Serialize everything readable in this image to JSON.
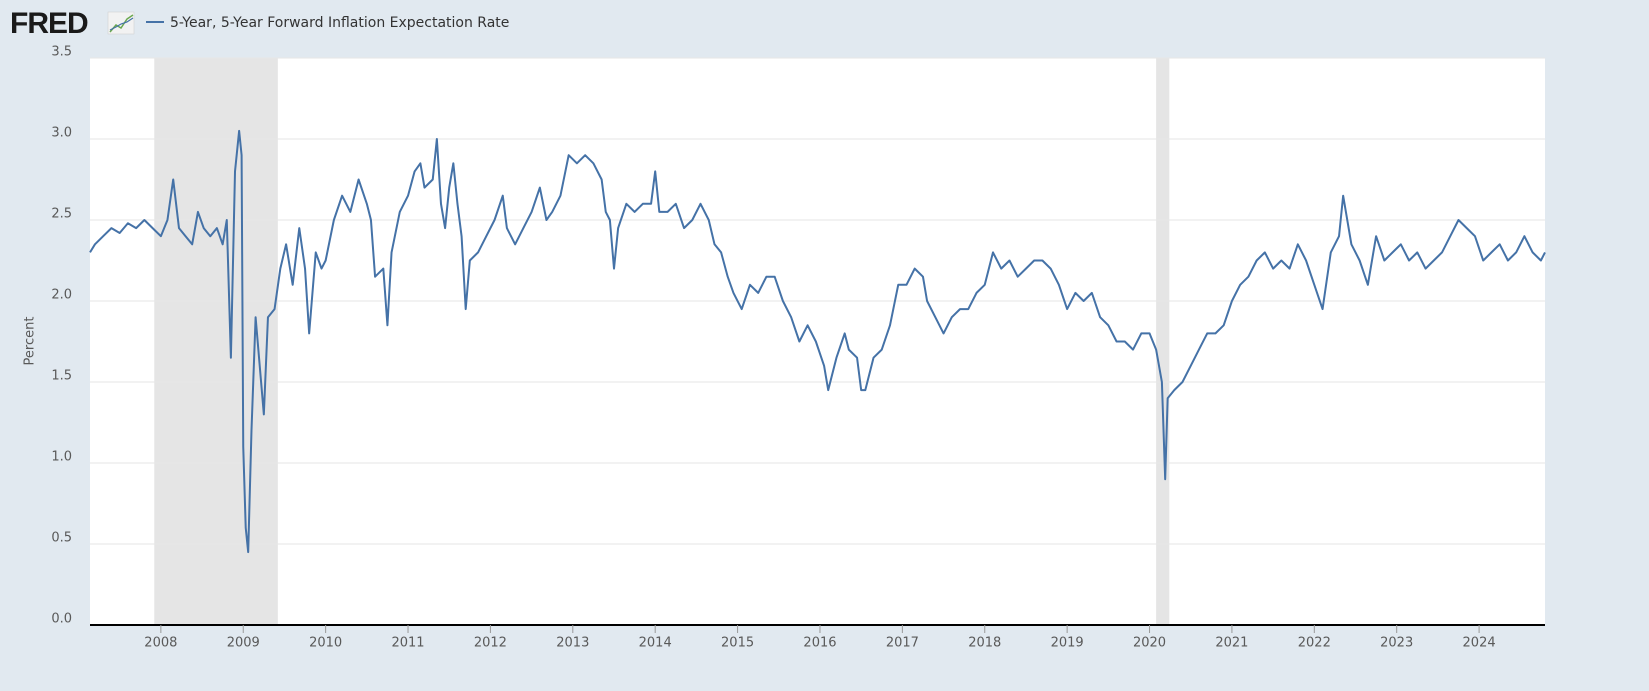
{
  "chart_data": {
    "type": "line",
    "logo": "FRED",
    "y_label": "Percent",
    "legend": "top-left",
    "grid": true,
    "xlim": [
      2007.14,
      2024.8
    ],
    "xticks": [
      2008,
      2009,
      2010,
      2011,
      2012,
      2013,
      2014,
      2015,
      2016,
      2017,
      2018,
      2019,
      2020,
      2021,
      2022,
      2023,
      2024
    ],
    "ylim": [
      0,
      3.5
    ],
    "yticks": [
      {
        "value": 0,
        "label": "0.0"
      },
      0.5,
      {
        "value": 1,
        "label": "1.0"
      },
      1.5,
      {
        "value": 2,
        "label": "2.0"
      },
      2.5,
      {
        "value": 3,
        "label": "3.0"
      },
      3.5
    ],
    "recession_color": "#e5e5e5",
    "recessions": [
      [
        2007.92,
        2009.42
      ],
      [
        2020.08,
        2020.24
      ]
    ],
    "x": [
      2007.14,
      2007.2,
      2007.3,
      2007.4,
      2007.5,
      2007.6,
      2007.7,
      2007.8,
      2007.9,
      2008.0,
      2008.08,
      2008.15,
      2008.22,
      2008.3,
      2008.38,
      2008.45,
      2008.52,
      2008.6,
      2008.68,
      2008.75,
      2008.8,
      2008.85,
      2008.9,
      2008.95,
      2008.98,
      2009.0,
      2009.03,
      2009.06,
      2009.1,
      2009.15,
      2009.2,
      2009.25,
      2009.3,
      2009.38,
      2009.45,
      2009.52,
      2009.6,
      2009.68,
      2009.75,
      2009.8,
      2009.88,
      2009.95,
      2010.0,
      2010.1,
      2010.2,
      2010.3,
      2010.4,
      2010.5,
      2010.55,
      2010.6,
      2010.7,
      2010.75,
      2010.8,
      2010.9,
      2011.0,
      2011.08,
      2011.15,
      2011.2,
      2011.3,
      2011.35,
      2011.4,
      2011.45,
      2011.5,
      2011.55,
      2011.6,
      2011.65,
      2011.7,
      2011.75,
      2011.85,
      2011.95,
      2012.05,
      2012.15,
      2012.2,
      2012.3,
      2012.4,
      2012.5,
      2012.6,
      2012.68,
      2012.75,
      2012.85,
      2012.95,
      2013.05,
      2013.15,
      2013.25,
      2013.35,
      2013.4,
      2013.45,
      2013.5,
      2013.55,
      2013.65,
      2013.75,
      2013.85,
      2013.95,
      2014.0,
      2014.05,
      2014.15,
      2014.25,
      2014.35,
      2014.45,
      2014.55,
      2014.65,
      2014.72,
      2014.8,
      2014.88,
      2014.95,
      2015.05,
      2015.15,
      2015.25,
      2015.35,
      2015.45,
      2015.55,
      2015.65,
      2015.75,
      2015.85,
      2015.95,
      2016.05,
      2016.1,
      2016.2,
      2016.3,
      2016.35,
      2016.45,
      2016.5,
      2016.55,
      2016.65,
      2016.75,
      2016.85,
      2016.95,
      2017.05,
      2017.15,
      2017.25,
      2017.3,
      2017.4,
      2017.5,
      2017.6,
      2017.7,
      2017.8,
      2017.9,
      2018.0,
      2018.1,
      2018.2,
      2018.3,
      2018.4,
      2018.5,
      2018.6,
      2018.7,
      2018.8,
      2018.9,
      2019.0,
      2019.1,
      2019.2,
      2019.3,
      2019.4,
      2019.5,
      2019.6,
      2019.7,
      2019.8,
      2019.9,
      2020.0,
      2020.08,
      2020.15,
      2020.19,
      2020.22,
      2020.3,
      2020.4,
      2020.5,
      2020.6,
      2020.7,
      2020.8,
      2020.9,
      2021.0,
      2021.1,
      2021.2,
      2021.3,
      2021.4,
      2021.5,
      2021.6,
      2021.7,
      2021.8,
      2021.9,
      2022.0,
      2022.1,
      2022.2,
      2022.3,
      2022.35,
      2022.45,
      2022.55,
      2022.65,
      2022.75,
      2022.85,
      2022.95,
      2023.05,
      2023.15,
      2023.25,
      2023.35,
      2023.45,
      2023.55,
      2023.65,
      2023.75,
      2023.85,
      2023.95,
      2024.05,
      2024.15,
      2024.25,
      2024.35,
      2024.45,
      2024.55,
      2024.65,
      2024.75,
      2024.8
    ],
    "series": [
      {
        "name": "5-Year, 5-Year Forward Inflation Expectation Rate",
        "color": "#4572a7",
        "values": [
          2.3,
          2.35,
          2.4,
          2.45,
          2.42,
          2.48,
          2.45,
          2.5,
          2.45,
          2.4,
          2.5,
          2.75,
          2.45,
          2.4,
          2.35,
          2.55,
          2.45,
          2.4,
          2.45,
          2.35,
          2.5,
          1.65,
          2.8,
          3.05,
          2.9,
          1.1,
          0.6,
          0.45,
          1.2,
          1.9,
          1.6,
          1.3,
          1.9,
          1.95,
          2.2,
          2.35,
          2.1,
          2.45,
          2.2,
          1.8,
          2.3,
          2.2,
          2.25,
          2.5,
          2.65,
          2.55,
          2.75,
          2.6,
          2.5,
          2.15,
          2.2,
          1.85,
          2.3,
          2.55,
          2.65,
          2.8,
          2.85,
          2.7,
          2.75,
          3.0,
          2.6,
          2.45,
          2.7,
          2.85,
          2.6,
          2.4,
          1.95,
          2.25,
          2.3,
          2.4,
          2.5,
          2.65,
          2.45,
          2.35,
          2.45,
          2.55,
          2.7,
          2.5,
          2.55,
          2.65,
          2.9,
          2.85,
          2.9,
          2.85,
          2.75,
          2.55,
          2.5,
          2.2,
          2.45,
          2.6,
          2.55,
          2.6,
          2.6,
          2.8,
          2.55,
          2.55,
          2.6,
          2.45,
          2.5,
          2.6,
          2.5,
          2.35,
          2.3,
          2.15,
          2.05,
          1.95,
          2.1,
          2.05,
          2.15,
          2.15,
          2.0,
          1.9,
          1.75,
          1.85,
          1.75,
          1.6,
          1.45,
          1.65,
          1.8,
          1.7,
          1.65,
          1.45,
          1.45,
          1.65,
          1.7,
          1.85,
          2.1,
          2.1,
          2.2,
          2.15,
          2.0,
          1.9,
          1.8,
          1.9,
          1.95,
          1.95,
          2.05,
          2.1,
          2.3,
          2.2,
          2.25,
          2.15,
          2.2,
          2.25,
          2.25,
          2.2,
          2.1,
          1.95,
          2.05,
          2.0,
          2.05,
          1.9,
          1.85,
          1.75,
          1.75,
          1.7,
          1.8,
          1.8,
          1.7,
          1.5,
          0.9,
          1.4,
          1.45,
          1.5,
          1.6,
          1.7,
          1.8,
          1.8,
          1.85,
          2.0,
          2.1,
          2.15,
          2.25,
          2.3,
          2.2,
          2.25,
          2.2,
          2.35,
          2.25,
          2.1,
          1.95,
          2.3,
          2.4,
          2.65,
          2.35,
          2.25,
          2.1,
          2.4,
          2.25,
          2.3,
          2.35,
          2.25,
          2.3,
          2.2,
          2.25,
          2.3,
          2.4,
          2.5,
          2.45,
          2.4,
          2.25,
          2.3,
          2.35,
          2.25,
          2.3,
          2.4,
          2.3,
          2.25,
          2.3
        ]
      }
    ]
  }
}
